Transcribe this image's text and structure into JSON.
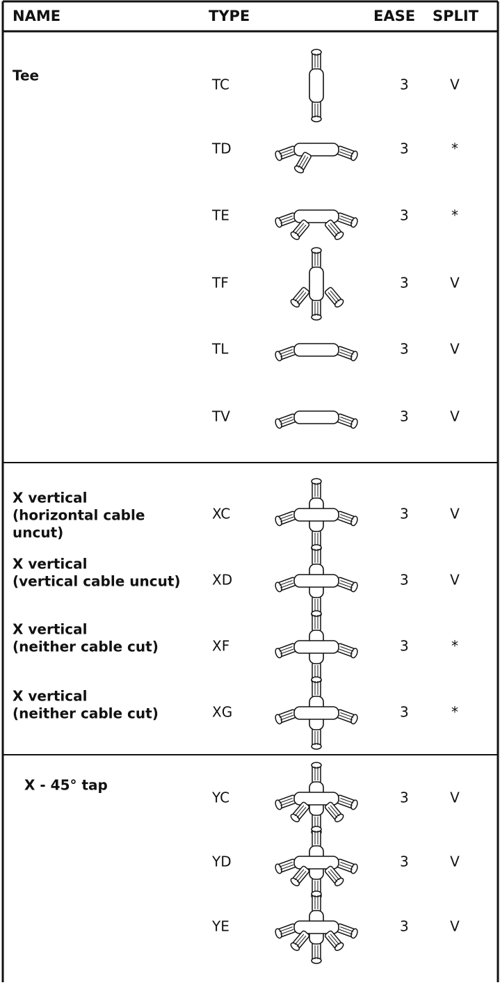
{
  "header": {
    "columns": [
      "NAME",
      "TYPE",
      "EASE",
      "SPLIT"
    ]
  },
  "groups": [
    {
      "rows": [
        {
          "name": [
            "Tee"
          ],
          "type": "TC",
          "ease": 3,
          "split": "V"
        },
        {
          "type": "TD",
          "ease": 3,
          "split": "*"
        },
        {
          "type": "TE",
          "ease": 3,
          "split": "*"
        },
        {
          "type": "TF",
          "ease": 3,
          "split": "V"
        },
        {
          "type": "TL",
          "ease": 3,
          "split": "V"
        },
        {
          "type": "TV",
          "ease": 3,
          "split": "V"
        }
      ]
    },
    {
      "rows": [
        {
          "name": [
            "X vertical",
            "(horizontal cable",
            "uncut)"
          ],
          "type": "XC",
          "ease": 3,
          "split": "V"
        },
        {
          "name": [
            "X vertical",
            "(vertical cable uncut)"
          ],
          "type": "XD",
          "ease": 3,
          "split": "V"
        },
        {
          "name": [
            "X vertical",
            "(neither cable cut)"
          ],
          "type": "XF",
          "ease": 3,
          "split": "*"
        },
        {
          "name": [
            "X vertical",
            "(neither cable cut)"
          ],
          "type": "XG",
          "ease": 3,
          "split": "*"
        }
      ]
    },
    {
      "rows": [
        {
          "name": [
            "X - 45° tap"
          ],
          "type": "YC",
          "ease": 3,
          "split": "V"
        },
        {
          "type": "YD",
          "ease": 3,
          "split": "V"
        },
        {
          "type": "YE",
          "ease": 3,
          "split": "V"
        }
      ]
    }
  ]
}
